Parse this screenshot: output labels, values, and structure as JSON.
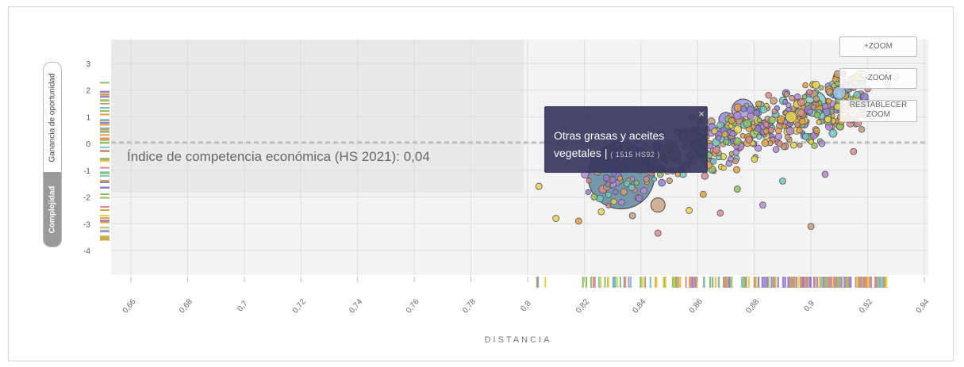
{
  "toggle": {
    "opportunity_label": "Ganancia de oportunidad",
    "complexity_label": "Complejidad",
    "selected": "Complejidad"
  },
  "zoom": {
    "zoom_in_label": "+ZOOM",
    "zoom_out_label": "-ZOOM",
    "reset_label_1": "RESTABLECER",
    "reset_label_2": "ZOOM"
  },
  "tooltip": {
    "name": "Otras grasas y aceites vegetales",
    "separator": " | ",
    "code": "( 1515 HS92 )",
    "close": "×"
  },
  "chart_data": {
    "type": "scatter",
    "xlabel": "DISTANCIA",
    "ylabel": "",
    "xlim": [
      0.65,
      0.94
    ],
    "ylim": [
      -5,
      3.5
    ],
    "x_ticks": [
      "0,66",
      "0,68",
      "0,7",
      "0,72",
      "0,74",
      "0,76",
      "0,78",
      "0,8",
      "0,82",
      "0,84",
      "0,86",
      "0,88",
      "0,9",
      "0,92",
      "0,94"
    ],
    "y_ticks": [
      "3",
      "2",
      "1",
      "0",
      "-1",
      "-2",
      "-3",
      "-4"
    ],
    "threshold": {
      "y": 0.04,
      "label": "Índice de competencia económica (HS 2021): 0,04"
    },
    "grid": true,
    "palette": [
      "#e6d24f",
      "#8fbf62",
      "#74c4c0",
      "#8c7fd6",
      "#d98c8c",
      "#c49b7a",
      "#b08ad8",
      "#e2a03f"
    ],
    "points": [
      {
        "x": 0.833,
        "y": -1.2,
        "r": 42,
        "c": "#4e7892"
      },
      {
        "x": 0.876,
        "y": 1.25,
        "r": 14,
        "c": "#9b8be0"
      },
      {
        "x": 0.901,
        "y": 1.5,
        "r": 16,
        "c": "#74c4c0"
      },
      {
        "x": 0.884,
        "y": 0.6,
        "r": 10,
        "c": "#b08ad8"
      },
      {
        "x": 0.846,
        "y": -2.3,
        "r": 9,
        "c": "#c49b7a"
      },
      {
        "x": 0.87,
        "y": 0.9,
        "r": 9,
        "c": "#8c7fd6"
      },
      {
        "x": 0.858,
        "y": 0.3,
        "r": 8,
        "c": "#d98c8c"
      },
      {
        "x": 0.91,
        "y": 1.9,
        "r": 8,
        "c": "#9cc7e8"
      },
      {
        "x": 0.893,
        "y": 1.0,
        "r": 7,
        "c": "#e6d24f"
      },
      {
        "x": 0.852,
        "y": -0.4,
        "r": 7,
        "c": "#8fbf62"
      },
      {
        "x": 0.804,
        "y": -1.6,
        "r": 4,
        "c": "#e6d24f"
      },
      {
        "x": 0.81,
        "y": -2.8,
        "r": 4,
        "c": "#e6d24f"
      },
      {
        "x": 0.818,
        "y": -2.9,
        "r": 4,
        "c": "#e2a03f"
      },
      {
        "x": 0.826,
        "y": -2.55,
        "r": 4,
        "c": "#e6d24f"
      },
      {
        "x": 0.837,
        "y": -2.7,
        "r": 4,
        "c": "#c49b7a"
      },
      {
        "x": 0.846,
        "y": -3.35,
        "r": 4,
        "c": "#d98c8c"
      },
      {
        "x": 0.857,
        "y": -2.5,
        "r": 4,
        "c": "#e6d24f"
      },
      {
        "x": 0.868,
        "y": -2.6,
        "r": 4,
        "c": "#d98c8c"
      },
      {
        "x": 0.883,
        "y": -2.3,
        "r": 4,
        "c": "#b08ad8"
      },
      {
        "x": 0.9,
        "y": -3.1,
        "r": 4,
        "c": "#c49b7a"
      },
      {
        "x": 0.862,
        "y": -1.9,
        "r": 4,
        "c": "#e2a03f"
      },
      {
        "x": 0.874,
        "y": -1.7,
        "r": 4,
        "c": "#8fbf62"
      },
      {
        "x": 0.89,
        "y": -1.4,
        "r": 4,
        "c": "#74c4c0"
      },
      {
        "x": 0.905,
        "y": -1.15,
        "r": 4,
        "c": "#b08ad8"
      },
      {
        "x": 0.915,
        "y": -0.3,
        "r": 4,
        "c": "#d98c8c"
      },
      {
        "x": 0.921,
        "y": 1.2,
        "r": 4,
        "c": "#9cc7e8"
      },
      {
        "x": 0.927,
        "y": 2.2,
        "r": 4,
        "c": "#b08ad8"
      },
      {
        "x": 0.93,
        "y": 2.5,
        "r": 4,
        "c": "#9cc7e8"
      }
    ],
    "cloud": {
      "count": 520,
      "x_range": [
        0.82,
        0.92
      ],
      "trend_intercept_at_x": 0.82,
      "trend_y_at_x_min": -1.5,
      "trend_slope": 33,
      "y_spread": 1.35,
      "r_range": [
        3,
        5
      ]
    },
    "x_rug": {
      "x_range": [
        0.8,
        0.927
      ],
      "count": 240
    },
    "y_rug": {
      "y_range": [
        -3.6,
        2.3
      ],
      "count": 70
    }
  }
}
